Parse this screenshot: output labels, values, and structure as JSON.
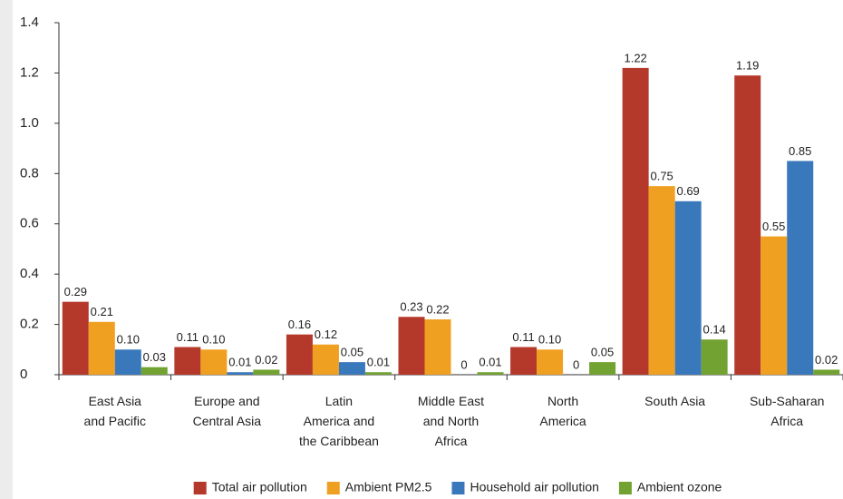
{
  "chart_data": {
    "type": "bar",
    "categories": [
      "East Asia\nand Pacific",
      "Europe and\nCentral Asia",
      "Latin\nAmerica and\nthe Caribbean",
      "Middle East\nand North\nAfrica",
      "North\nAmerica",
      "South Asia",
      "Sub-Saharan\nAfrica"
    ],
    "series": [
      {
        "name": "Total air pollution",
        "color": "#b5392b",
        "values": [
          0.29,
          0.11,
          0.16,
          0.23,
          0.11,
          1.22,
          1.19
        ],
        "value_labels": [
          "0.29",
          "0.11",
          "0.16",
          "0.23",
          "0.11",
          "1.22",
          "1.19"
        ]
      },
      {
        "name": "Ambient PM2.5",
        "color": "#f0a020",
        "values": [
          0.21,
          0.1,
          0.12,
          0.22,
          0.1,
          0.75,
          0.55
        ],
        "value_labels": [
          "0.21",
          "0.10",
          "0.12",
          "0.22",
          "0.10",
          "0.75",
          "0.55"
        ]
      },
      {
        "name": "Household air pollution",
        "color": "#3a78bc",
        "values": [
          0.1,
          0.01,
          0.05,
          0,
          0,
          0.69,
          0.85
        ],
        "value_labels": [
          "0.10",
          "0.01",
          "0.05",
          "0",
          "0",
          "0.69",
          "0.85"
        ]
      },
      {
        "name": "Ambient ozone",
        "color": "#72a232",
        "values": [
          0.03,
          0.02,
          0.01,
          0.01,
          0.05,
          0.14,
          0.02
        ],
        "value_labels": [
          "0.03",
          "0.02",
          "0.01",
          "0.01",
          "0.05",
          "0.14",
          "0.02"
        ]
      }
    ],
    "ylim": [
      0,
      1.4
    ],
    "yticks": [
      0,
      0.2,
      0.4,
      0.6,
      0.8,
      {
        "value": 1,
        "label": "1.0"
      },
      1.2,
      1.4
    ],
    "grid": false,
    "legend": "bottom"
  }
}
